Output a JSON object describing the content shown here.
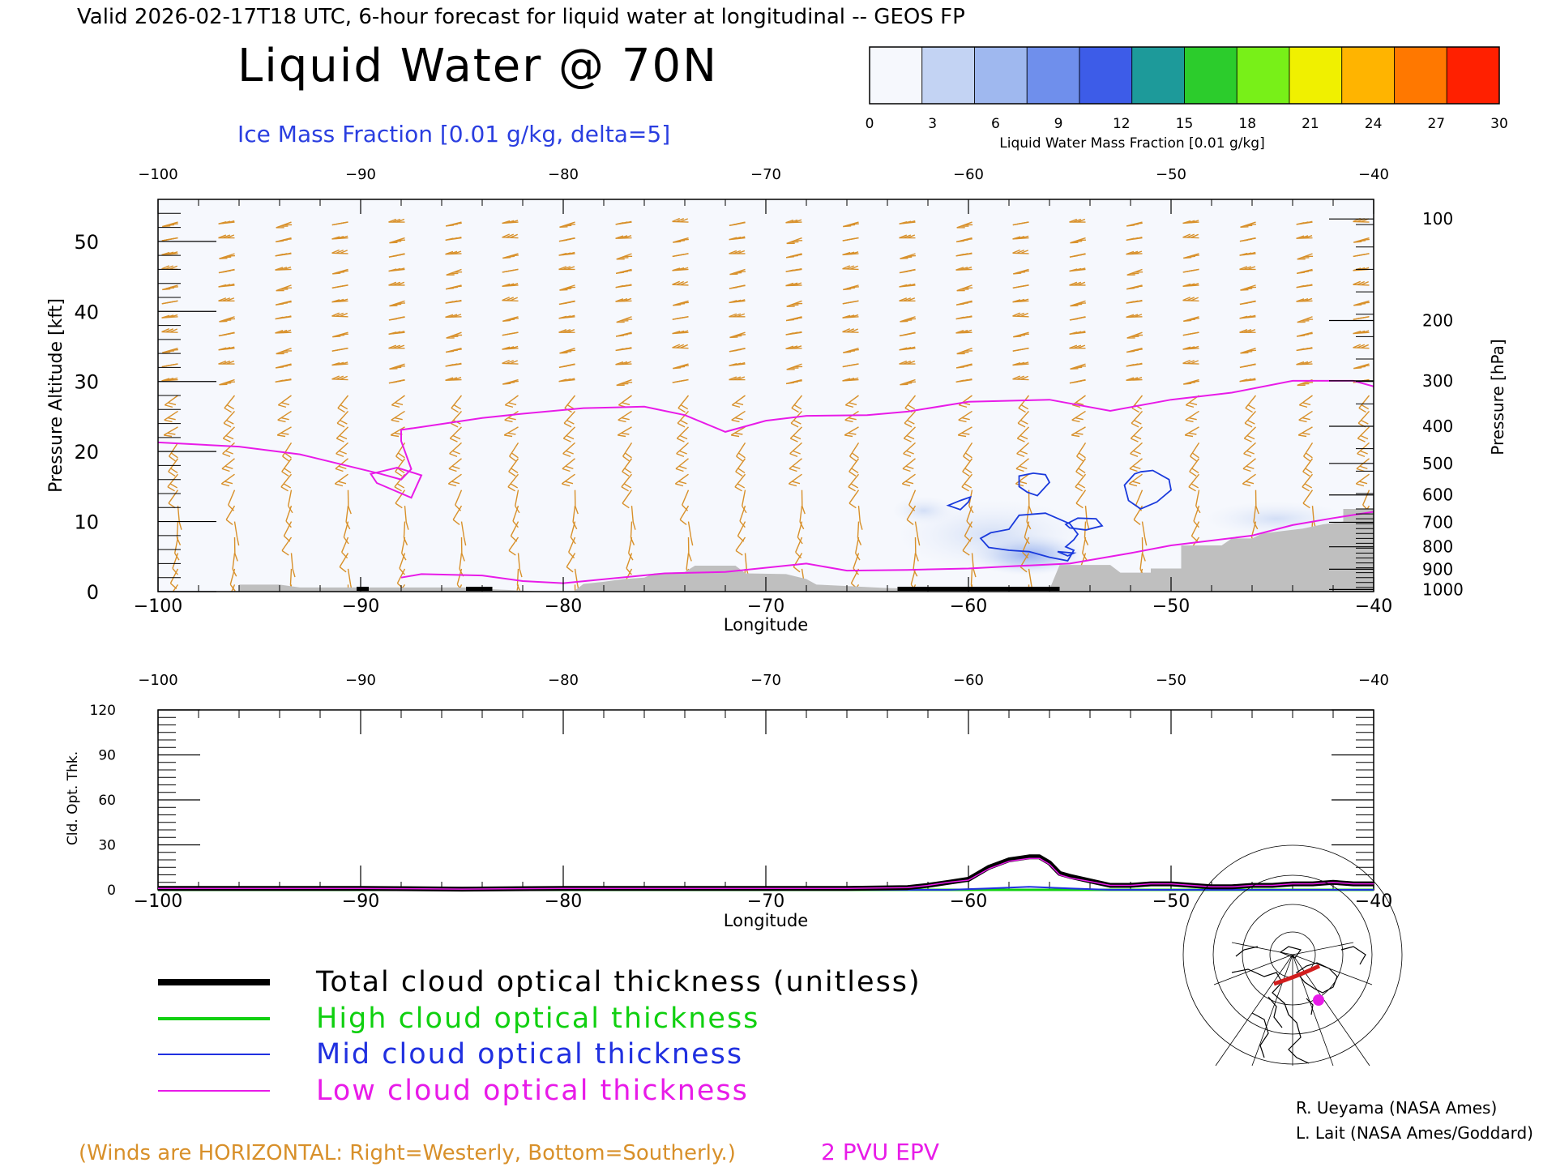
{
  "header": {
    "valid_line": "Valid 2026-02-17T18 UTC, 6-hour forecast for liquid water at longitudinal -- GEOS FP",
    "main_title": "Liquid Water @ 70N",
    "subtitle": "Ice Mass Fraction [0.01 g/kg, delta=5]"
  },
  "colorbar": {
    "label": "Liquid Water Mass Fraction [0.01 g/kg]",
    "ticks": [
      "0",
      "3",
      "6",
      "9",
      "12",
      "15",
      "18",
      "21",
      "24",
      "27",
      "30"
    ],
    "colors": [
      "#f6f8fd",
      "#c3d3f3",
      "#9fb8ef",
      "#6f8fec",
      "#3d5ce8",
      "#1d9a9a",
      "#2ccc2c",
      "#78f018",
      "#f0f000",
      "#ffb400",
      "#ff7800",
      "#ff2000"
    ]
  },
  "footer": {
    "winds_note": "(Winds are HORIZONTAL: Right=Westerly, Bottom=Southerly.)",
    "pvu_label": "2 PVU EPV",
    "credit_1": "R. Ueyama (NASA Ames)",
    "credit_2": "L. Lait (NASA Ames/Goddard)"
  },
  "colors": {
    "ice_contour": "#1a3adc",
    "pv_contour": "#e81be8",
    "wind_barbs": "#d8902a",
    "terrain": "#bfbfbf",
    "total": "#000000",
    "high": "#10d010",
    "mid": "#2030e0",
    "low": "#e81be8"
  },
  "chart_data": [
    {
      "type": "heatmap",
      "title": "Liquid Water @ 70N",
      "subtitle": "Ice Mass Fraction [0.01 g/kg, delta=5]",
      "xlabel": "Longitude",
      "ylabel": "Pressure Altitude [kft]",
      "ylabel_right": "Pressure [hPa]",
      "xlim": [
        -100,
        -40
      ],
      "ylim": [
        0,
        56
      ],
      "x_ticks": [
        "−100",
        "−90",
        "−80",
        "−70",
        "−60",
        "−50",
        "−40"
      ],
      "y_ticks": [
        "0",
        "10",
        "20",
        "30",
        "40",
        "50"
      ],
      "pressure_ticks": [
        {
          "label": "100",
          "kft": 53.2
        },
        {
          "label": "200",
          "kft": 38.7
        },
        {
          "label": "300",
          "kft": 30.1
        },
        {
          "label": "400",
          "kft": 23.6
        },
        {
          "label": "500",
          "kft": 18.3
        },
        {
          "label": "600",
          "kft": 13.8
        },
        {
          "label": "700",
          "kft": 9.9
        },
        {
          "label": "800",
          "kft": 6.4
        },
        {
          "label": "900",
          "kft": 3.2
        },
        {
          "label": "1000",
          "kft": 0.3
        }
      ],
      "ice_mass_fraction_levels": [
        5
      ],
      "ice_contours": [
        [
          [
            -58.0,
            8.9
          ],
          [
            -57.5,
            10.9
          ],
          [
            -56.2,
            11.2
          ],
          [
            -55.0,
            9.7
          ],
          [
            -54.6,
            8.2
          ],
          [
            -54.8,
            7.4
          ],
          [
            -55.2,
            6.4
          ],
          [
            -54.8,
            5.9
          ],
          [
            -55.1,
            4.4
          ],
          [
            -56.0,
            4.9
          ],
          [
            -57.0,
            5.7
          ],
          [
            -58.0,
            5.9
          ],
          [
            -59.0,
            6.3
          ],
          [
            -59.4,
            7.6
          ],
          [
            -58.9,
            8.4
          ]
        ],
        [
          [
            -61.0,
            12.3
          ],
          [
            -60.4,
            11.7
          ],
          [
            -60.0,
            12.8
          ],
          [
            -59.9,
            13.5
          ],
          [
            -60.4,
            13.0
          ]
        ],
        [
          [
            -55.2,
            9.6
          ],
          [
            -54.6,
            10.5
          ],
          [
            -53.7,
            10.4
          ],
          [
            -53.4,
            9.4
          ],
          [
            -54.2,
            8.8
          ],
          [
            -55.0,
            9.1
          ]
        ],
        [
          [
            -55.6,
            5.7
          ],
          [
            -55.1,
            5.1
          ],
          [
            -54.8,
            5.5
          ]
        ],
        [
          [
            -57.5,
            16.5
          ],
          [
            -56.8,
            16.9
          ],
          [
            -56.2,
            16.7
          ],
          [
            -56.0,
            15.6
          ],
          [
            -56.6,
            13.7
          ],
          [
            -57.1,
            14.2
          ],
          [
            -57.5,
            15.0
          ]
        ],
        [
          [
            -51.5,
            17.1
          ],
          [
            -50.9,
            17.3
          ],
          [
            -50.1,
            16.0
          ],
          [
            -50.0,
            14.5
          ],
          [
            -50.7,
            12.8
          ],
          [
            -51.5,
            11.8
          ],
          [
            -52.1,
            13.0
          ],
          [
            -52.3,
            15.2
          ],
          [
            -51.8,
            16.8
          ]
        ]
      ],
      "pv_2pvu_tropopause": [
        [
          -100.0,
          21.3
        ],
        [
          -96.0,
          20.7
        ],
        [
          -93.0,
          19.6
        ],
        [
          -89.0,
          16.8
        ],
        [
          -88.0,
          16.0
        ],
        [
          -87.5,
          17.5
        ],
        [
          -88.0,
          21.5
        ],
        [
          -88.0,
          23.1
        ],
        [
          -87.0,
          23.5
        ],
        [
          -84.0,
          24.8
        ],
        [
          -82.0,
          25.4
        ],
        [
          -79.0,
          26.2
        ],
        [
          -76.0,
          26.4
        ],
        [
          -74.0,
          25.2
        ],
        [
          -72.0,
          22.8
        ],
        [
          -70.0,
          24.4
        ],
        [
          -68.0,
          25.1
        ],
        [
          -65.0,
          25.2
        ],
        [
          -63.0,
          25.7
        ],
        [
          -60.0,
          27.1
        ],
        [
          -56.0,
          27.4
        ],
        [
          -53.0,
          25.8
        ],
        [
          -50.0,
          27.4
        ],
        [
          -47.0,
          28.4
        ],
        [
          -44.0,
          30.1
        ],
        [
          -41.0,
          30.1
        ],
        [
          -40.0,
          29.3
        ]
      ],
      "pv_2pvu_loop": [
        [
          -89.5,
          16.8
        ],
        [
          -88.2,
          17.7
        ],
        [
          -87.0,
          16.6
        ],
        [
          -87.5,
          13.4
        ],
        [
          -89.2,
          15.5
        ]
      ],
      "pv_2pvu_lower": [
        [
          -88.0,
          2.0
        ],
        [
          -87.0,
          2.5
        ],
        [
          -84.0,
          2.3
        ],
        [
          -82.0,
          1.5
        ],
        [
          -80.0,
          1.2
        ],
        [
          -75.0,
          2.6
        ],
        [
          -72.0,
          2.8
        ],
        [
          -68.0,
          4.0
        ],
        [
          -66.0,
          3.0
        ],
        [
          -63.0,
          3.1
        ],
        [
          -60.0,
          3.3
        ],
        [
          -58.0,
          3.6
        ],
        [
          -55.0,
          4.0
        ],
        [
          -52.0,
          5.5
        ],
        [
          -50.0,
          6.6
        ],
        [
          -46.0,
          8.0
        ],
        [
          -44.0,
          9.5
        ],
        [
          -42.0,
          10.5
        ],
        [
          -40.0,
          11.4
        ]
      ],
      "terrain_kft": [
        [
          -100.0,
          0.0
        ],
        [
          -96.0,
          0.0
        ],
        [
          -96.0,
          1.0
        ],
        [
          -94.0,
          1.0
        ],
        [
          -93.0,
          0.6
        ],
        [
          -84.5,
          0.6
        ],
        [
          -84.0,
          0.4
        ],
        [
          -81.0,
          0.0
        ],
        [
          -79.5,
          0.0
        ],
        [
          -79.0,
          1.1
        ],
        [
          -78.0,
          1.4
        ],
        [
          -77.0,
          1.8
        ],
        [
          -76.0,
          2.0
        ],
        [
          -75.5,
          2.6
        ],
        [
          -74.0,
          2.8
        ],
        [
          -73.5,
          3.7
        ],
        [
          -71.5,
          3.7
        ],
        [
          -71.0,
          2.6
        ],
        [
          -69.0,
          2.5
        ],
        [
          -68.0,
          1.8
        ],
        [
          -67.5,
          1.0
        ],
        [
          -66.0,
          0.8
        ],
        [
          -64.0,
          0.5
        ],
        [
          -60.0,
          0.3
        ],
        [
          -58.0,
          0.2
        ],
        [
          -56.0,
          0.3
        ],
        [
          -55.5,
          3.8
        ],
        [
          -53.0,
          3.8
        ],
        [
          -52.5,
          2.7
        ],
        [
          -51.0,
          2.7
        ],
        [
          -51.0,
          3.3
        ],
        [
          -49.5,
          3.3
        ],
        [
          -49.5,
          6.6
        ],
        [
          -47.5,
          6.6
        ],
        [
          -47.0,
          7.6
        ],
        [
          -46.0,
          7.6
        ],
        [
          -45.5,
          8.3
        ],
        [
          -43.5,
          9.0
        ],
        [
          -42.5,
          9.6
        ],
        [
          -41.5,
          10.0
        ],
        [
          -41.5,
          11.8
        ],
        [
          -40.0,
          11.8
        ],
        [
          -40.0,
          0.0
        ]
      ]
    },
    {
      "type": "line",
      "ylabel": "Cld. Opt. Thk.",
      "xlabel": "Longitude",
      "xlim": [
        -100,
        -40
      ],
      "ylim": [
        0,
        120
      ],
      "x_ticks": [
        "−100",
        "−90",
        "−80",
        "−70",
        "−60",
        "−50",
        "−40"
      ],
      "y_ticks": [
        "0",
        "30",
        "60",
        "90",
        "120"
      ],
      "series": [
        {
          "name": "Total cloud optical thickness (unitless)",
          "color": "#000000",
          "x": [
            -100,
            -95,
            -90,
            -85,
            -80,
            -75,
            -70,
            -66,
            -63,
            -62,
            -61,
            -60,
            -59,
            -58,
            -57.5,
            -57,
            -56.5,
            -56,
            -55.5,
            -55,
            -54,
            -53,
            -52,
            -51,
            -50,
            -49,
            -48,
            -47,
            -46,
            -45,
            -44,
            -43,
            -42,
            -41,
            -40
          ],
          "values": [
            1,
            1,
            1,
            0.5,
            1,
            1,
            1,
            1,
            1.5,
            3,
            5,
            7,
            15,
            20,
            21,
            22,
            22,
            18,
            11,
            9,
            6,
            3,
            3,
            4,
            4,
            3,
            2,
            2,
            3,
            3,
            4,
            4,
            5,
            4,
            4
          ]
        },
        {
          "name": "High cloud optical thickness",
          "color": "#10d010",
          "x": [
            -100,
            -70,
            -40
          ],
          "values": [
            0,
            0,
            0
          ]
        },
        {
          "name": "Mid cloud optical thickness",
          "color": "#2030e0",
          "x": [
            -100,
            -61,
            -59,
            -57,
            -55,
            -53,
            -40
          ],
          "values": [
            0,
            0,
            1,
            2,
            1,
            0,
            0
          ]
        },
        {
          "name": "Low cloud optical thickness",
          "color": "#e81be8",
          "x": [
            -100,
            -95,
            -90,
            -85,
            -80,
            -75,
            -70,
            -66,
            -63,
            -62,
            -61,
            -60,
            -59,
            -58,
            -57.5,
            -57,
            -56.5,
            -56,
            -55.5,
            -55,
            -54,
            -53,
            -52,
            -51,
            -50,
            -49,
            -48,
            -47,
            -46,
            -45,
            -44,
            -43,
            -42,
            -41,
            -40
          ],
          "values": [
            1,
            1,
            1,
            0.5,
            1,
            1,
            1,
            1,
            1.5,
            3,
            5,
            6.5,
            14,
            19,
            20,
            21,
            21,
            17,
            10,
            8,
            5.5,
            3,
            3,
            4,
            4,
            3,
            2,
            2,
            3,
            3,
            4,
            4,
            5,
            4,
            4
          ]
        }
      ]
    }
  ]
}
